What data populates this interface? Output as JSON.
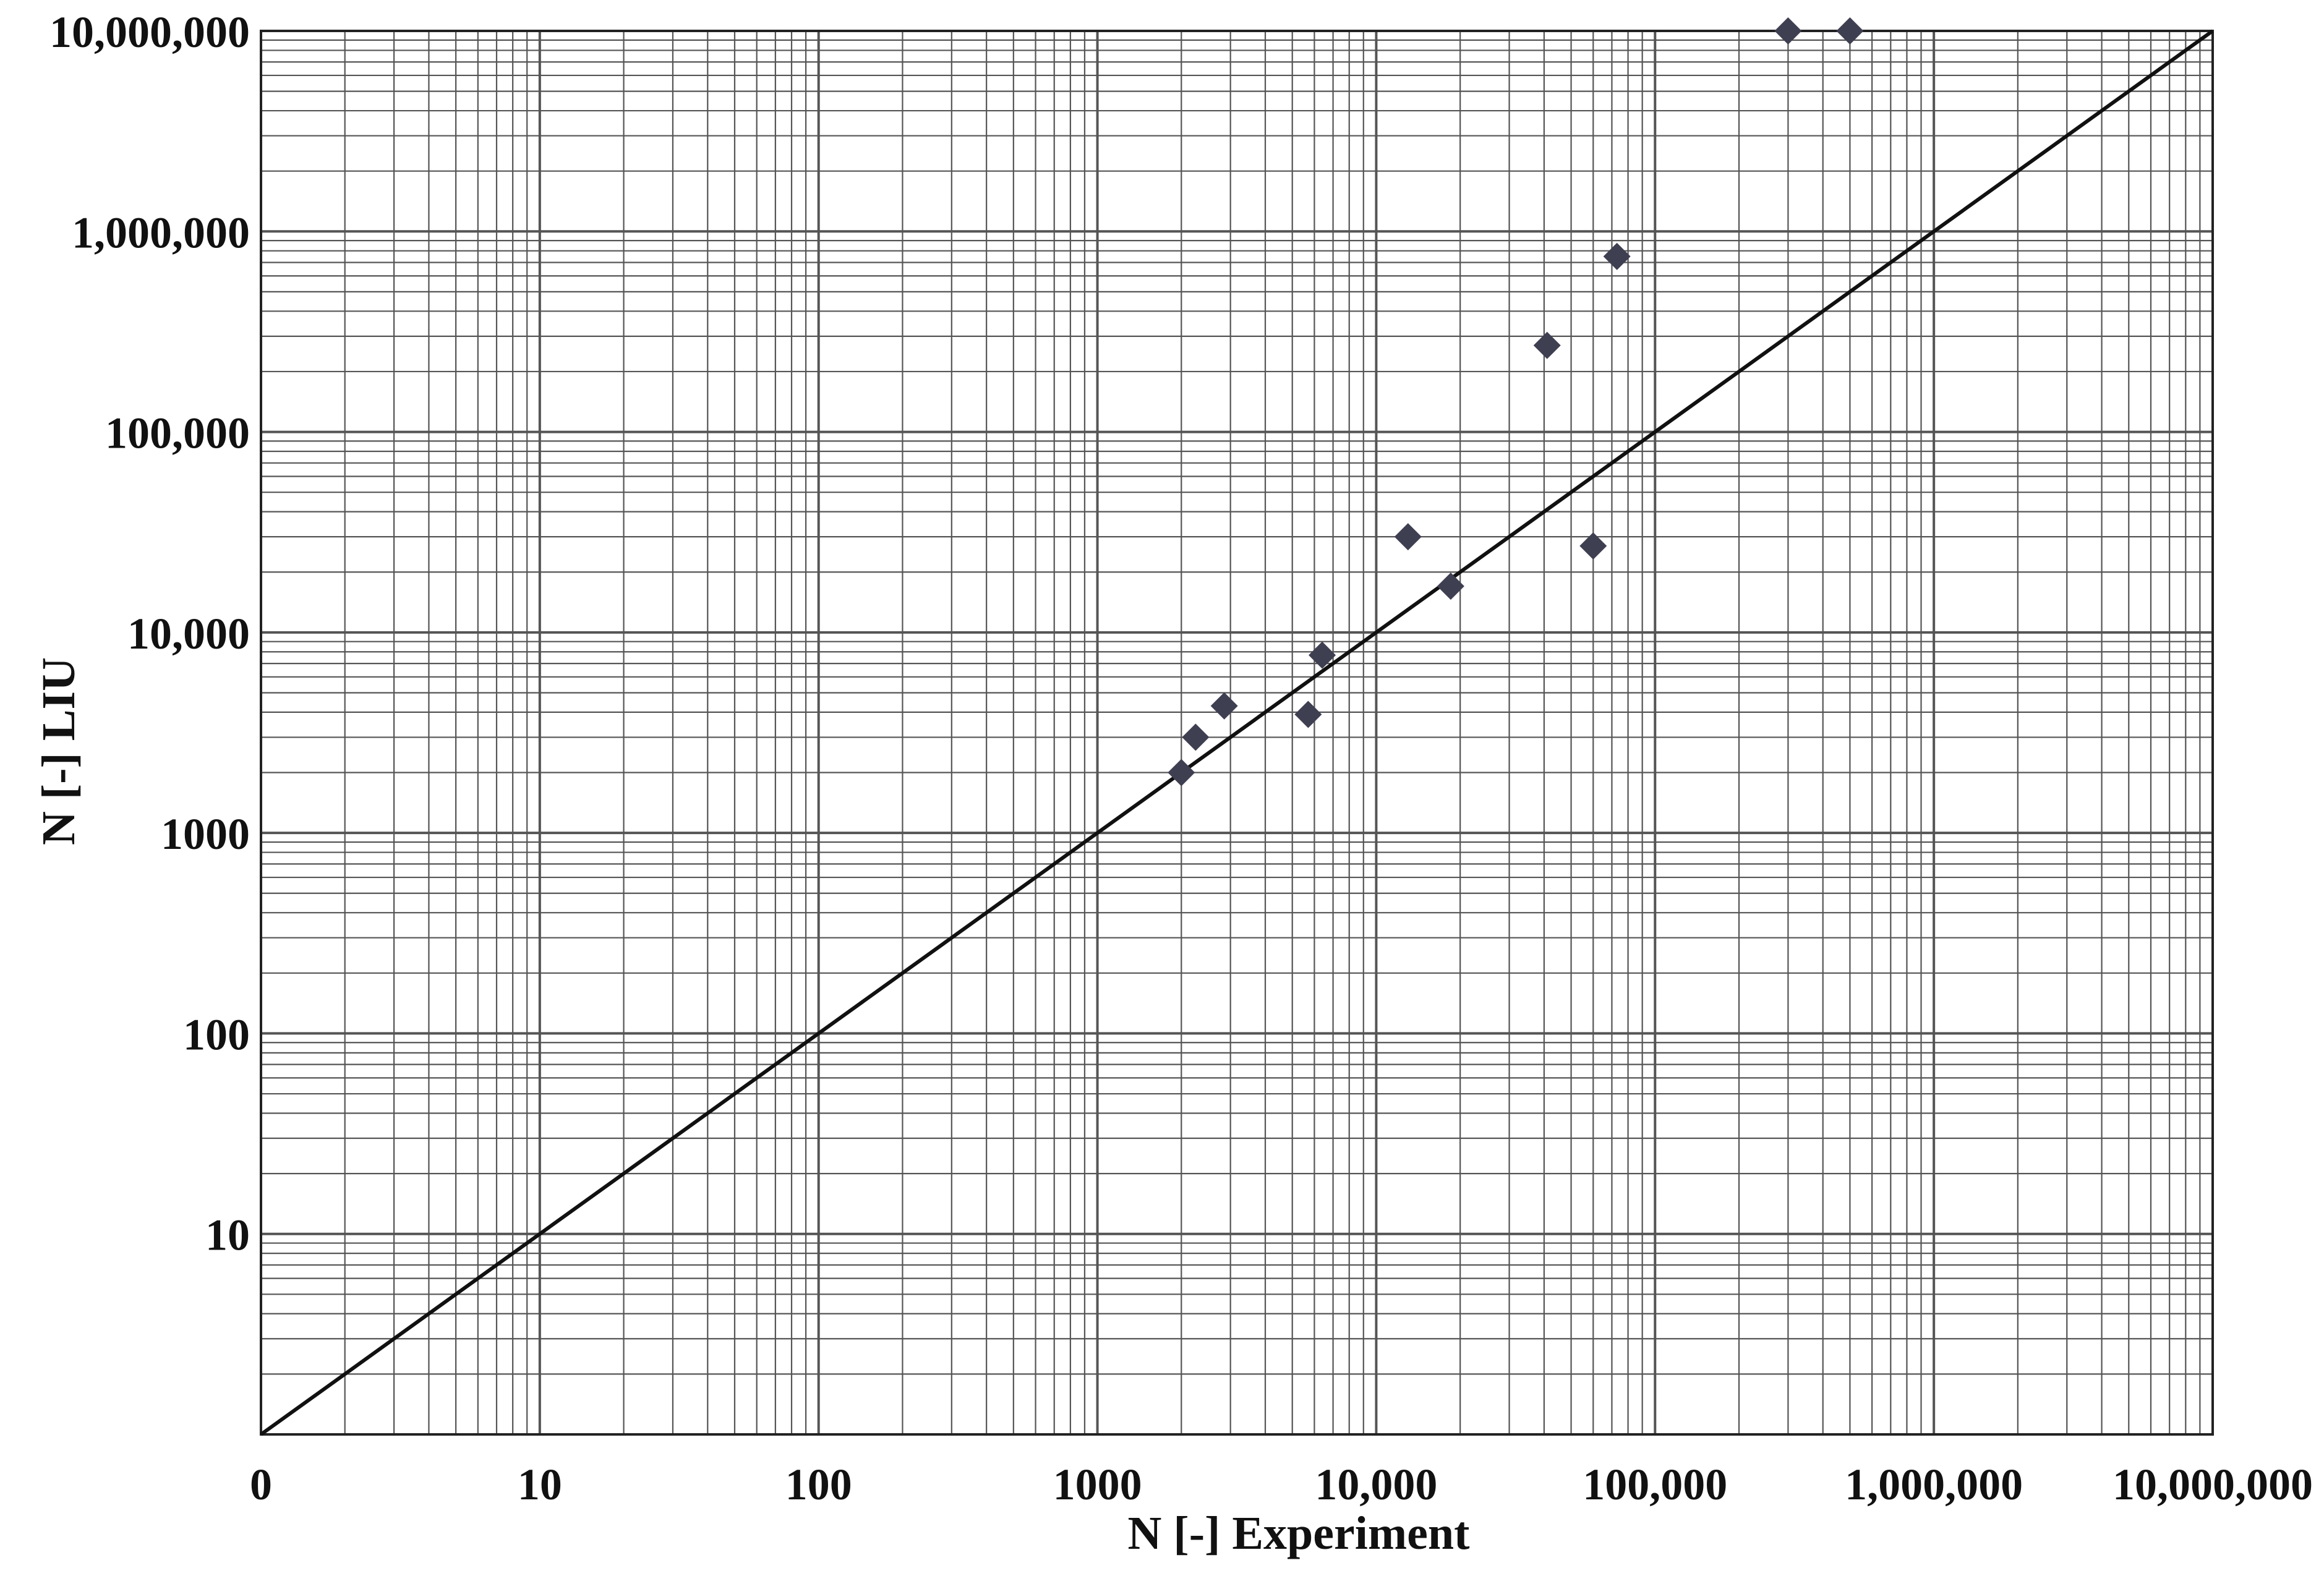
{
  "chart_data": {
    "type": "scatter",
    "title": "",
    "xlabel": "N [-]  Experiment",
    "ylabel": "N [-] LIU",
    "xscale": "log",
    "yscale": "log",
    "xlim": [
      1,
      10000000
    ],
    "ylim": [
      1,
      10000000
    ],
    "grid": true,
    "x_tick_labels": [
      "0",
      "10",
      "100",
      "1000",
      "10,000",
      "100,000",
      "1,000,000",
      "10,000,000"
    ],
    "y_tick_labels": [
      "10",
      "100",
      "1000",
      "10,000",
      "100,000",
      "1,000,000",
      "10,000,000"
    ],
    "reference_line": {
      "from": [
        1,
        1
      ],
      "to": [
        10000000,
        10000000
      ]
    },
    "points": [
      {
        "x": 2000,
        "y": 2000
      },
      {
        "x": 2250,
        "y": 3000
      },
      {
        "x": 2850,
        "y": 4300
      },
      {
        "x": 5700,
        "y": 3900
      },
      {
        "x": 6400,
        "y": 7700
      },
      {
        "x": 13000,
        "y": 30000
      },
      {
        "x": 18500,
        "y": 17000
      },
      {
        "x": 41000,
        "y": 270000
      },
      {
        "x": 60000,
        "y": 27000
      },
      {
        "x": 73000,
        "y": 750000
      },
      {
        "x": 300000,
        "y": 10000000
      },
      {
        "x": 500000,
        "y": 10000000
      }
    ],
    "marker_color": "#3f3f52",
    "line_color": "#111111",
    "grid_color": "#555555"
  }
}
